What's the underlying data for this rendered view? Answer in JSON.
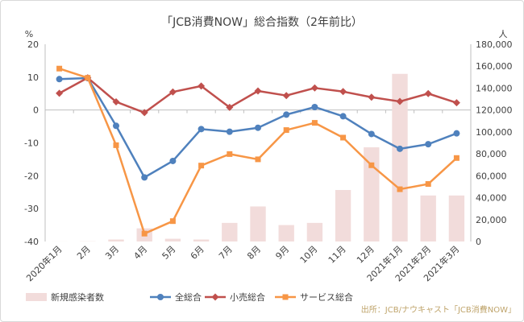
{
  "chart_data": {
    "type": "bar+line",
    "title": "「JCB消費NOW」総合指数（2年前比）",
    "y_left_unit": "%",
    "y_right_unit": "人",
    "ylim_left": [
      -40,
      20
    ],
    "ylim_right": [
      0,
      180000
    ],
    "y_left_ticks": [
      "20",
      "10",
      "0",
      "-10",
      "-20",
      "-30",
      "-40"
    ],
    "y_right_ticks": [
      "180,000",
      "160,000",
      "140,000",
      "120,000",
      "100,000",
      "80,000",
      "60,000",
      "40,000",
      "20,000",
      "0"
    ],
    "categories": [
      "2020年1月",
      "2月",
      "3月",
      "4月",
      "5月",
      "6月",
      "7月",
      "8月",
      "9月",
      "10月",
      "11月",
      "12月",
      "2021年1月",
      "2021年2月",
      "2021年3月"
    ],
    "bar_series": {
      "name": "新規感染者数",
      "color": "#f2dcdb",
      "values": [
        50,
        200,
        1800,
        12000,
        2500,
        1800,
        17000,
        32000,
        15000,
        17000,
        47000,
        86000,
        153000,
        42000,
        42000
      ]
    },
    "line_series": [
      {
        "name": "全総合",
        "color": "#4f81bd",
        "marker": "circle",
        "values": [
          9.4,
          9.7,
          -4.8,
          -20.5,
          -15.5,
          -5.8,
          -6.6,
          -5.4,
          -1.4,
          0.9,
          -1.9,
          -7.3,
          -11.8,
          -10.4,
          -7.1
        ]
      },
      {
        "name": "小売総合",
        "color": "#c0504d",
        "marker": "diamond",
        "values": [
          5.1,
          9.8,
          2.5,
          -0.8,
          5.5,
          7.3,
          0.8,
          5.8,
          4.4,
          6.7,
          5.6,
          3.9,
          2.6,
          5.0,
          2.2
        ]
      },
      {
        "name": "サービス総合",
        "color": "#f79646",
        "marker": "square",
        "values": [
          12.6,
          9.8,
          -10.7,
          -37.6,
          -33.8,
          -16.9,
          -13.4,
          -15.0,
          -6.1,
          -3.9,
          -8.4,
          -16.8,
          -24.1,
          -22.5,
          -14.6
        ]
      }
    ],
    "legend": [
      "新規感染者数",
      "全総合",
      "小売総合",
      "サービス総合"
    ],
    "legend_position": "bottom",
    "source": "出所：JCB/ナウキャスト「JCB消費NOW」",
    "grid": false
  }
}
